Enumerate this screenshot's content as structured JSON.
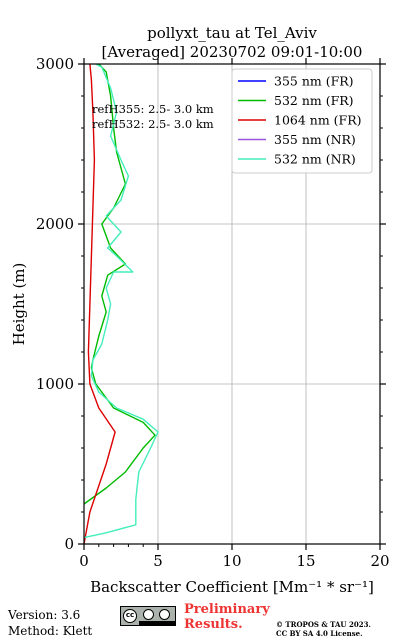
{
  "chart_data": {
    "type": "line",
    "title": [
      "pollyxt_tau at Tel_Aviv",
      "[Averaged] 20230702 09:01-10:00"
    ],
    "xlabel": "Backscatter Coefficient [Mm⁻¹ * sr⁻¹]",
    "ylabel": "Height (m)",
    "xlim": [
      0,
      20
    ],
    "ylim": [
      0,
      3000
    ],
    "xticks": [
      0,
      5,
      10,
      15,
      20
    ],
    "yticks": [
      0,
      1000,
      2000,
      3000
    ],
    "grid": true,
    "legend_position": "top-right",
    "annotations": [
      "refH355:  2.5- 3.0 km",
      "refH532:  2.5- 3.0 km"
    ],
    "series": [
      {
        "name": "355 nm (FR)",
        "color": "#0000ff",
        "points": []
      },
      {
        "name": "532 nm (FR)",
        "color": "#00bb00",
        "points": [
          [
            0.0,
            250
          ],
          [
            1.5,
            350
          ],
          [
            2.8,
            450
          ],
          [
            4.0,
            600
          ],
          [
            4.8,
            680
          ],
          [
            4.0,
            760
          ],
          [
            2.0,
            850
          ],
          [
            0.8,
            1000
          ],
          [
            0.5,
            1100
          ],
          [
            0.6,
            1150
          ],
          [
            1.0,
            1300
          ],
          [
            1.5,
            1450
          ],
          [
            1.2,
            1550
          ],
          [
            1.6,
            1680
          ],
          [
            2.8,
            1750
          ],
          [
            1.8,
            1850
          ],
          [
            1.2,
            2000
          ],
          [
            2.0,
            2100
          ],
          [
            2.8,
            2250
          ],
          [
            2.2,
            2450
          ],
          [
            2.0,
            2600
          ],
          [
            1.8,
            2800
          ],
          [
            1.5,
            2950
          ],
          [
            1.0,
            3000
          ]
        ]
      },
      {
        "name": "1064 nm (FR)",
        "color": "#dd0000",
        "points": [
          [
            0.0,
            0
          ],
          [
            0.4,
            200
          ],
          [
            1.5,
            500
          ],
          [
            2.1,
            700
          ],
          [
            1.0,
            850
          ],
          [
            0.4,
            1000
          ],
          [
            0.3,
            1200
          ],
          [
            0.4,
            1500
          ],
          [
            0.5,
            1800
          ],
          [
            0.6,
            2100
          ],
          [
            0.7,
            2400
          ],
          [
            0.6,
            2700
          ],
          [
            0.5,
            2900
          ],
          [
            0.4,
            3000
          ]
        ]
      },
      {
        "name": "355 nm (NR)",
        "color": "#9955dd",
        "points": []
      },
      {
        "name": "532 nm (NR)",
        "color": "#44eebb",
        "points": [
          [
            0.0,
            40
          ],
          [
            1.5,
            70
          ],
          [
            3.5,
            120
          ],
          [
            3.5,
            280
          ],
          [
            3.7,
            450
          ],
          [
            4.5,
            600
          ],
          [
            5.0,
            700
          ],
          [
            4.0,
            780
          ],
          [
            2.2,
            850
          ],
          [
            1.0,
            950
          ],
          [
            0.5,
            1050
          ],
          [
            0.6,
            1150
          ],
          [
            1.2,
            1250
          ],
          [
            1.6,
            1400
          ],
          [
            1.8,
            1500
          ],
          [
            1.5,
            1600
          ],
          [
            2.0,
            1700
          ],
          [
            3.3,
            1700
          ],
          [
            2.2,
            1800
          ],
          [
            1.6,
            1850
          ],
          [
            2.5,
            1950
          ],
          [
            1.5,
            2050
          ],
          [
            2.5,
            2150
          ],
          [
            3.0,
            2300
          ],
          [
            2.5,
            2400
          ],
          [
            1.8,
            2550
          ],
          [
            2.2,
            2700
          ],
          [
            1.8,
            2850
          ],
          [
            1.2,
            2980
          ],
          [
            0.8,
            3000
          ]
        ]
      }
    ]
  },
  "footer": {
    "version": "Version: 3.6",
    "method": "Method: Klett",
    "license_badge": "cc by sa",
    "preliminary": [
      "Preliminary",
      "Results."
    ],
    "copyright": [
      "© TROPOS & TAU 2023.",
      "CC BY SA 4.0 License."
    ]
  }
}
